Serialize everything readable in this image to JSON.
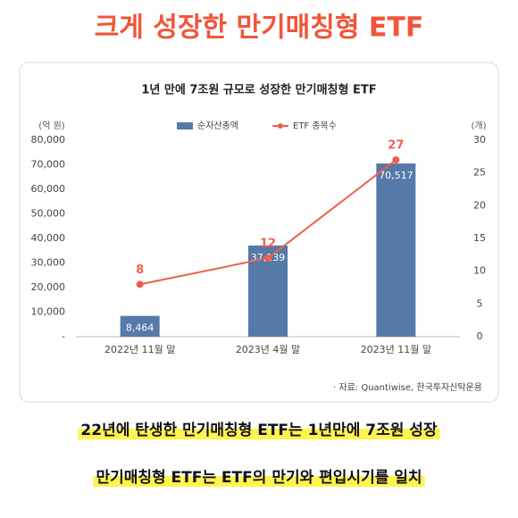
{
  "header": {
    "title": "크게 성장한 만기매칭형 ETF"
  },
  "chart_data": {
    "type": "bar",
    "title": "1년 만에 7조원 규모로 성장한 만기매칭형 ETF",
    "ylabel": "(억 원)",
    "y2label": "(개)",
    "categories": [
      "2022년 11월 말",
      "2023년 4월 말",
      "2023년 11월 말"
    ],
    "series": [
      {
        "name": "순자산총액",
        "type": "bar",
        "color": "#5579a8",
        "values": [
          8464,
          37139,
          70517
        ],
        "value_labels": [
          "8,464",
          "37,139",
          "70,517"
        ]
      },
      {
        "name": "ETF 종목수",
        "type": "line",
        "axis": "y2",
        "color": "#ef5f4b",
        "values": [
          8,
          12,
          27
        ]
      }
    ],
    "ylim": [
      0,
      80000
    ],
    "yticks": [
      {
        "value": 0,
        "label": "-"
      },
      {
        "value": 10000,
        "label": "10,000"
      },
      {
        "value": 20000,
        "label": "20,000"
      },
      {
        "value": 30000,
        "label": "30,000"
      },
      {
        "value": 40000,
        "label": "40,000"
      },
      {
        "value": 50000,
        "label": "50,000"
      },
      {
        "value": 60000,
        "label": "60,000"
      },
      {
        "value": 70000,
        "label": "70,000"
      },
      {
        "value": 80000,
        "label": "80,000"
      }
    ],
    "y2lim": [
      0,
      30
    ],
    "y2ticks": [
      0,
      5,
      10,
      15,
      20,
      25,
      30
    ],
    "grid": false,
    "source": "· 자료: Quantiwise, 한국투자신탁운용"
  },
  "captions": [
    "22년에 탄생한 만기매칭형 ETF는 1년만에 7조원 성장",
    "만기매칭형 ETF는 ETF의 만기와 편입시기를 일치"
  ]
}
